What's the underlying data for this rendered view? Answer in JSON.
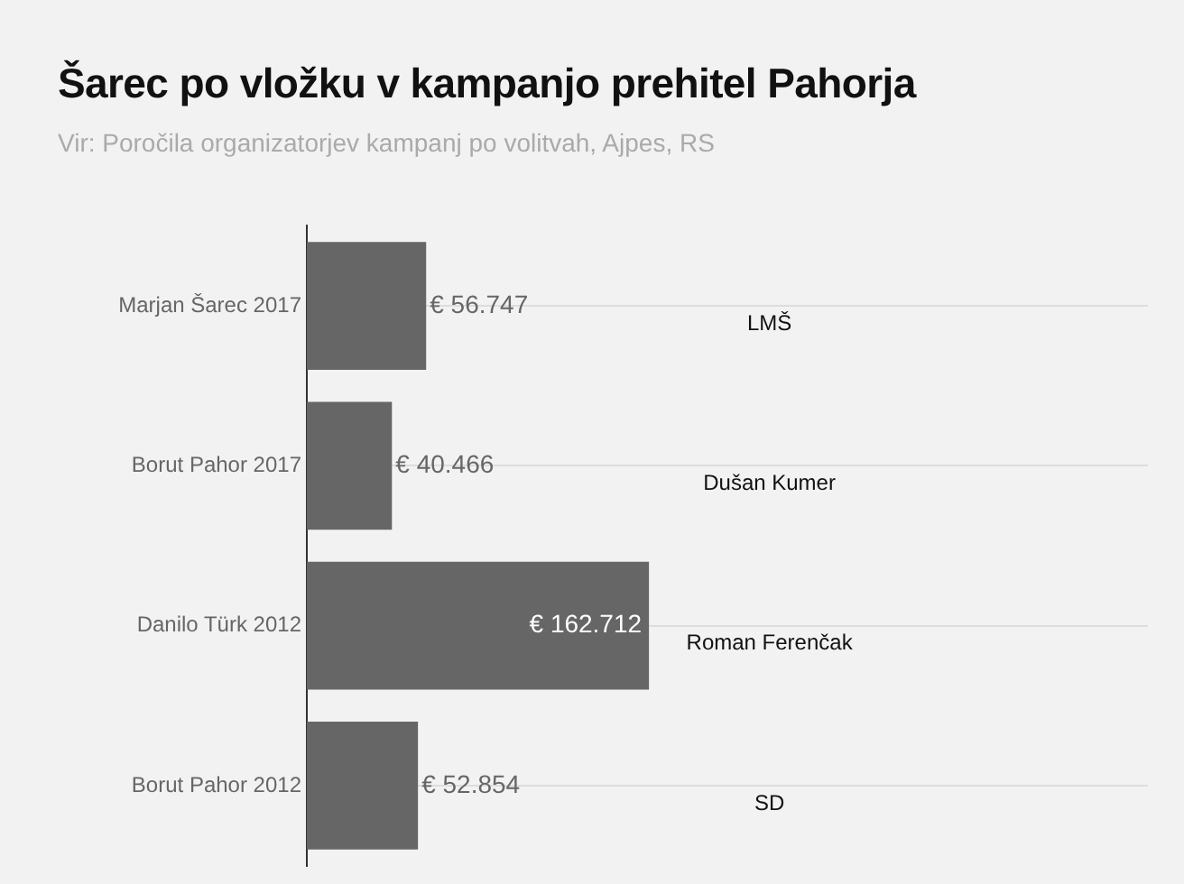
{
  "chart_data": {
    "type": "bar",
    "orientation": "horizontal",
    "title": "Šarec po vložku v kampanjo prehitel Pahorja",
    "subtitle": "Vir: Poročila organizatorjev kampanj po volitvah, Ajpes, RS",
    "categories": [
      "Marjan Šarec 2017",
      "Borut Pahor 2017",
      "Danilo Türk 2012",
      "Borut Pahor 2012"
    ],
    "values": [
      56747,
      40466,
      162712,
      52854
    ],
    "value_labels": [
      "€ 56.747",
      "€ 40.466",
      "€ 162.712",
      "€ 52.854"
    ],
    "color": "#666666",
    "tick_labels": "y",
    "grid": "y",
    "legend": false,
    "annotations": [
      "LMŠ",
      "Dušan Kumer",
      "Roman Ferenčak",
      "SD"
    ]
  }
}
